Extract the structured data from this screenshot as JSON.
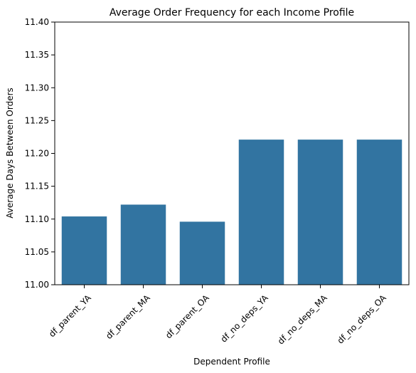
{
  "chart_data": {
    "type": "bar",
    "title": "Average Order Frequency for each Income Profile",
    "xlabel": "Dependent Profile",
    "ylabel": "Average Days Between Orders",
    "categories": [
      "df_parent_YA",
      "df_parent_MA",
      "df_parent_OA",
      "df_no_deps_YA",
      "df_no_deps_MA",
      "df_no_deps_OA"
    ],
    "values": [
      11.104,
      11.122,
      11.096,
      11.221,
      11.221,
      11.221
    ],
    "ylim": [
      11.0,
      11.4
    ],
    "yticks": [
      "11.00",
      "11.05",
      "11.10",
      "11.15",
      "11.20",
      "11.25",
      "11.30",
      "11.35",
      "11.40"
    ],
    "bar_color": "#3274a1",
    "grid": false
  }
}
